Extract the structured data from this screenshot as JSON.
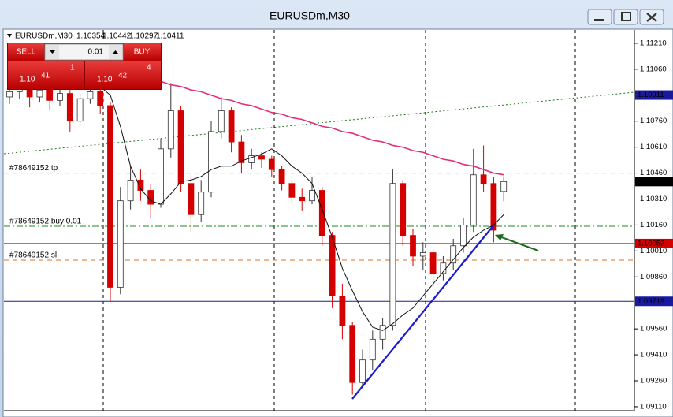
{
  "chart_data": {
    "type": "candlestick",
    "title": "EURUSDm,M30",
    "up_color": "#ffffff",
    "down_color": "#d40000",
    "open": [
      1.109,
      1.1093,
      1.1095,
      1.109,
      1.1094,
      1.1088,
      1.1092,
      1.1076,
      1.1089,
      1.1093,
      1.1085,
      1.098,
      1.103,
      1.1042,
      1.1036,
      1.1028,
      1.106,
      1.1082,
      1.104,
      1.1022,
      1.1035,
      1.107,
      1.1082,
      1.1064,
      1.1052,
      1.1056,
      1.1054,
      1.1048,
      1.104,
      1.1032,
      1.103,
      1.1036,
      1.101,
      1.0975,
      1.0958,
      1.0925,
      1.0938,
      1.095,
      1.0958,
      1.104,
      1.101,
      1.0998,
      1.1,
      1.0988,
      1.0994,
      1.1004,
      1.1016,
      1.1045,
      1.104,
      1.10354
    ],
    "high": [
      1.1097,
      1.1099,
      1.1097,
      1.1098,
      1.1096,
      1.1095,
      1.1094,
      1.1092,
      1.1097,
      1.1095,
      1.1087,
      1.1038,
      1.105,
      1.1048,
      1.104,
      1.1066,
      1.1098,
      1.1085,
      1.1045,
      1.1042,
      1.1076,
      1.109,
      1.1084,
      1.1068,
      1.106,
      1.1058,
      1.1056,
      1.105,
      1.1042,
      1.1037,
      1.1044,
      1.1038,
      1.1012,
      1.0982,
      1.096,
      1.0944,
      1.0955,
      1.0962,
      1.1048,
      1.1042,
      1.1014,
      1.1006,
      1.1002,
      1.0998,
      1.1008,
      1.102,
      1.106,
      1.1062,
      1.1044,
      1.10442
    ],
    "low": [
      1.1086,
      1.1089,
      1.1084,
      1.1087,
      1.1082,
      1.1085,
      1.107,
      1.1074,
      1.1086,
      1.108,
      1.0972,
      1.0976,
      1.1025,
      1.103,
      1.102,
      1.1026,
      1.1055,
      1.1035,
      1.1012,
      1.1018,
      1.1032,
      1.1066,
      1.1058,
      1.1046,
      1.1048,
      1.1049,
      1.1044,
      1.1036,
      1.1028,
      1.1024,
      1.1028,
      1.1004,
      1.0968,
      1.095,
      1.0918,
      1.0922,
      1.0932,
      1.0944,
      1.0955,
      1.1004,
      1.0992,
      1.099,
      1.098,
      1.0984,
      1.099,
      1.1,
      1.1012,
      1.1035,
      1.1006,
      1.10297
    ],
    "close": [
      1.1093,
      1.1095,
      1.109,
      1.1094,
      1.1088,
      1.1092,
      1.1076,
      1.1089,
      1.1093,
      1.1085,
      1.098,
      1.103,
      1.1042,
      1.1036,
      1.1028,
      1.106,
      1.1082,
      1.104,
      1.1022,
      1.1035,
      1.107,
      1.1082,
      1.1064,
      1.1052,
      1.1056,
      1.1054,
      1.1048,
      1.104,
      1.1032,
      1.103,
      1.1036,
      1.101,
      1.0975,
      1.0958,
      1.0925,
      1.0938,
      1.095,
      1.0958,
      1.104,
      1.101,
      1.0998,
      1.1,
      1.0988,
      1.0994,
      1.1004,
      1.1016,
      1.1045,
      1.104,
      1.1013,
      1.10411
    ],
    "series": [
      {
        "color": "#e0307a",
        "values": [
          null,
          null,
          null,
          null,
          null,
          null,
          null,
          null,
          null,
          null,
          null,
          null,
          null,
          null,
          null,
          1.1099,
          1.1097,
          1.1096,
          1.1094,
          1.1093,
          1.1091,
          1.1089,
          1.1088,
          1.1086,
          1.1085,
          1.1083,
          1.1081,
          1.108,
          1.1078,
          1.1077,
          1.1075,
          1.1073,
          1.1072,
          1.107,
          1.1069,
          1.1067,
          1.1065,
          1.1064,
          1.1062,
          1.1061,
          1.1059,
          1.1058,
          1.1056,
          1.1054,
          1.1053,
          1.1051,
          1.105,
          1.1048,
          1.1046,
          1.1045
        ]
      },
      {
        "color": "#111111",
        "values": [
          null,
          null,
          null,
          null,
          null,
          null,
          null,
          null,
          null,
          1.1096,
          1.1091,
          1.1073,
          1.105,
          1.1037,
          1.103,
          1.1028,
          1.1034,
          1.1041,
          1.1042,
          1.1044,
          1.1048,
          1.105,
          1.105,
          1.1053,
          1.1055,
          1.1057,
          1.106,
          1.1056,
          1.105,
          1.1046,
          1.104,
          1.1025,
          1.1009,
          1.0991,
          1.0978,
          1.0966,
          1.0957,
          1.0955,
          1.0959,
          1.0964,
          1.0968,
          1.0975,
          1.0982,
          1.0989,
          1.0996,
          1.1003,
          1.1009,
          1.1013,
          1.1016,
          1.1022
        ]
      }
    ],
    "ylim": [
      1.09087,
      1.11287
    ],
    "yticks": [
      {
        "value": 1.1121,
        "label": "1.11210"
      },
      {
        "value": 1.1106,
        "label": "1.11060"
      },
      {
        "value": 1.1076,
        "label": "1.10760"
      },
      {
        "value": 1.1061,
        "label": "1.10610"
      },
      {
        "value": 1.1046,
        "label": "1.10460"
      },
      {
        "value": 1.1031,
        "label": "1.10310"
      },
      {
        "value": 1.1016,
        "label": "1.10160"
      },
      {
        "value": 1.1001,
        "label": "1.10010"
      },
      {
        "value": 1.0986,
        "label": "1.09860"
      },
      {
        "value": 1.0956,
        "label": "1.09560"
      },
      {
        "value": 1.0941,
        "label": "1.09410"
      },
      {
        "value": 1.0926,
        "label": "1.09260"
      },
      {
        "value": 1.0911,
        "label": "1.09110"
      }
    ],
    "price_lines": [
      {
        "value": 1.10911,
        "color": "#1a1aa0"
      },
      {
        "value": 1.10053,
        "color": "#d40000"
      },
      {
        "value": 1.09719,
        "color": "#1a1aa0"
      }
    ],
    "order_levels": [
      {
        "label": "#78649152 tp",
        "value": 1.1046,
        "color": "#e07020",
        "dash": "6 5"
      },
      {
        "label": "#78649152 buy 0.01",
        "value": 1.10153,
        "color": "#1d8a1d",
        "dash": "8 3 2 3"
      },
      {
        "label": "#78649152 sl",
        "value": 1.09957,
        "color": "#e07020",
        "dash": "6 5"
      }
    ]
  },
  "trade_panel": {
    "sell": {
      "button": "SELL",
      "prefix": "1.10",
      "big": "41",
      "small": "1"
    },
    "volume": "0.01",
    "buy": {
      "button": "BUY",
      "prefix": "1.10",
      "big": "42",
      "small": "4"
    }
  }
}
